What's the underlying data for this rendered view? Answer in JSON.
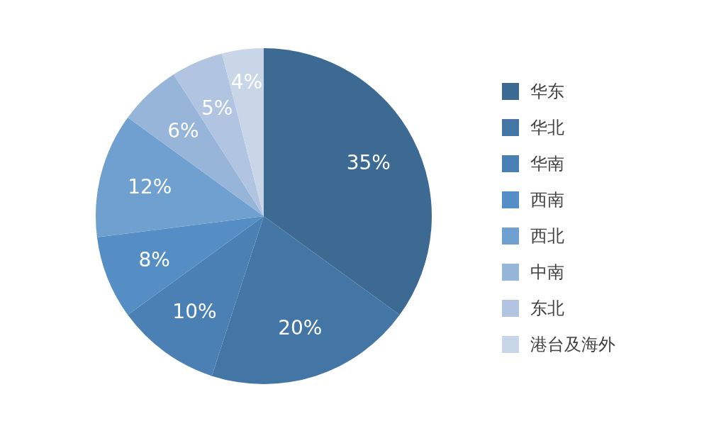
{
  "chart_data": {
    "type": "pie",
    "categories": [
      "华东",
      "华北",
      "华南",
      "西南",
      "西北",
      "中南",
      "东北",
      "港台及海外"
    ],
    "values": [
      35,
      20,
      10,
      8,
      12,
      6,
      5,
      4
    ],
    "value_labels": [
      "35%",
      "20%",
      "10%",
      "8%",
      "12%",
      "6%",
      "5%",
      "4%"
    ],
    "colors": [
      "#3d6a93",
      "#4476a5",
      "#4b80b4",
      "#548ec4",
      "#70a0d0",
      "#97b4d9",
      "#b1c5e2",
      "#c9d6e8"
    ],
    "legend": "right"
  }
}
